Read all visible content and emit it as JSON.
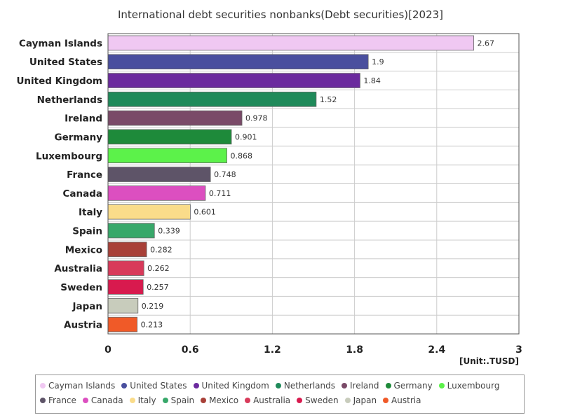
{
  "chart_data": {
    "type": "bar",
    "orientation": "horizontal",
    "title": "International debt securities nonbanks(Debt securities)[2023]",
    "unit_label": "[Unit:.TUSD]",
    "categories": [
      "Cayman Islands",
      "United States",
      "United Kingdom",
      "Netherlands",
      "Ireland",
      "Germany",
      "Luxembourg",
      "France",
      "Canada",
      "Italy",
      "Spain",
      "Mexico",
      "Australia",
      "Sweden",
      "Japan",
      "Austria"
    ],
    "values": [
      2.67,
      1.9,
      1.84,
      1.52,
      0.978,
      0.901,
      0.868,
      0.748,
      0.711,
      0.601,
      0.339,
      0.282,
      0.262,
      0.257,
      0.219,
      0.213
    ],
    "value_labels": [
      "2.67",
      "1.9",
      "1.84",
      "1.52",
      "0.978",
      "0.901",
      "0.868",
      "0.748",
      "0.711",
      "0.601",
      "0.339",
      "0.282",
      "0.262",
      "0.257",
      "0.219",
      "0.213"
    ],
    "colors": [
      "#f0c8f2",
      "#4a4f9e",
      "#6b2a9e",
      "#1f8a5a",
      "#7a4a68",
      "#1e8a3a",
      "#5cf24a",
      "#5e5468",
      "#dc4fc0",
      "#fadc8a",
      "#38a86a",
      "#a84038",
      "#d83a5a",
      "#d81a4e",
      "#c8ccbc",
      "#f05a28"
    ],
    "x_ticks": [
      "0",
      "0.6",
      "1.2",
      "1.8",
      "2.4",
      "3"
    ],
    "xlim": [
      0,
      3
    ],
    "grid": true,
    "legend_position": "bottom"
  }
}
